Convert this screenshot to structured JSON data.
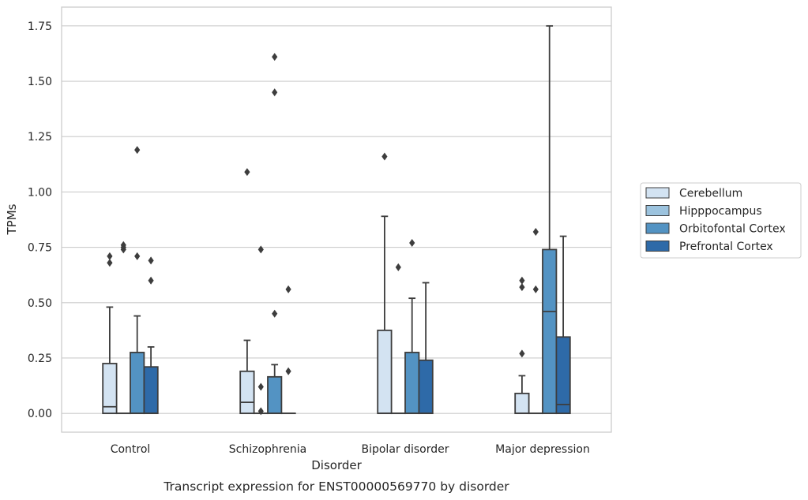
{
  "chart_data": {
    "type": "box",
    "caption": "Transcript expression for ENST00000569770 by disorder",
    "xlabel": "Disorder",
    "ylabel": "TPMs",
    "ylim": [
      -0.085,
      1.835
    ],
    "yticks": [
      0.0,
      0.25,
      0.5,
      0.75,
      1.0,
      1.25,
      1.5,
      1.75
    ],
    "ytick_labels": [
      "0.00",
      "0.25",
      "0.50",
      "0.75",
      "1.00",
      "1.25",
      "1.50",
      "1.75"
    ],
    "grid": "horizontal",
    "legend_position": "right",
    "categories": [
      "Control",
      "Schizophrenia",
      "Bipolar disorder",
      "Major depression"
    ],
    "series": [
      {
        "name": "Cerebellum",
        "color": "#d3e3f2",
        "boxes": [
          {
            "q1": 0.0,
            "median": 0.03,
            "q3": 0.225,
            "whisker_low": 0.0,
            "whisker_high": 0.48,
            "outliers": [
              0.68,
              0.71
            ]
          },
          {
            "q1": 0.0,
            "median": 0.05,
            "q3": 0.19,
            "whisker_low": 0.0,
            "whisker_high": 0.33,
            "outliers": [
              1.09
            ]
          },
          {
            "q1": 0.0,
            "median": 0.0,
            "q3": 0.375,
            "whisker_low": 0.0,
            "whisker_high": 0.89,
            "outliers": [
              1.16
            ]
          },
          {
            "q1": 0.0,
            "median": 0.0,
            "q3": 0.09,
            "whisker_low": 0.0,
            "whisker_high": 0.17,
            "outliers": [
              0.27,
              0.57,
              0.6
            ]
          }
        ]
      },
      {
        "name": "Hipppocampus",
        "color": "#9cc3de",
        "boxes": [
          {
            "q1": 0.0,
            "median": 0.0,
            "q3": 0.0,
            "whisker_low": 0.0,
            "whisker_high": 0.0,
            "outliers": [
              0.74,
              0.75,
              0.76
            ]
          },
          {
            "q1": 0.0,
            "median": 0.0,
            "q3": 0.0,
            "whisker_low": 0.0,
            "whisker_high": 0.0,
            "outliers": [
              0.01,
              0.12,
              0.74
            ]
          },
          {
            "q1": 0.0,
            "median": 0.0,
            "q3": 0.0,
            "whisker_low": 0.0,
            "whisker_high": 0.0,
            "outliers": [
              0.66
            ]
          },
          {
            "q1": 0.0,
            "median": 0.0,
            "q3": 0.0,
            "whisker_low": 0.0,
            "whisker_high": 0.0,
            "outliers": [
              0.56,
              0.82
            ]
          }
        ]
      },
      {
        "name": "Orbitofontal Cortex",
        "color": "#5393c3",
        "boxes": [
          {
            "q1": 0.0,
            "median": 0.0,
            "q3": 0.275,
            "whisker_low": 0.0,
            "whisker_high": 0.44,
            "outliers": [
              0.71,
              1.19
            ]
          },
          {
            "q1": 0.0,
            "median": 0.0,
            "q3": 0.165,
            "whisker_low": 0.0,
            "whisker_high": 0.22,
            "outliers": [
              0.45,
              1.45,
              1.61
            ]
          },
          {
            "q1": 0.0,
            "median": 0.0,
            "q3": 0.275,
            "whisker_low": 0.0,
            "whisker_high": 0.52,
            "outliers": [
              0.77
            ]
          },
          {
            "q1": 0.0,
            "median": 0.46,
            "q3": 0.74,
            "whisker_low": 0.0,
            "whisker_high": 1.75,
            "outliers": []
          }
        ]
      },
      {
        "name": "Prefrontal Cortex",
        "color": "#2e6aa8",
        "boxes": [
          {
            "q1": 0.0,
            "median": 0.0,
            "q3": 0.21,
            "whisker_low": 0.0,
            "whisker_high": 0.3,
            "outliers": [
              0.6,
              0.69
            ]
          },
          {
            "q1": 0.0,
            "median": 0.0,
            "q3": 0.0,
            "whisker_low": 0.0,
            "whisker_high": 0.0,
            "outliers": [
              0.19,
              0.56
            ]
          },
          {
            "q1": 0.0,
            "median": 0.0,
            "q3": 0.24,
            "whisker_low": 0.0,
            "whisker_high": 0.59,
            "outliers": []
          },
          {
            "q1": 0.0,
            "median": 0.04,
            "q3": 0.345,
            "whisker_low": 0.0,
            "whisker_high": 0.8,
            "outliers": []
          }
        ]
      }
    ]
  }
}
